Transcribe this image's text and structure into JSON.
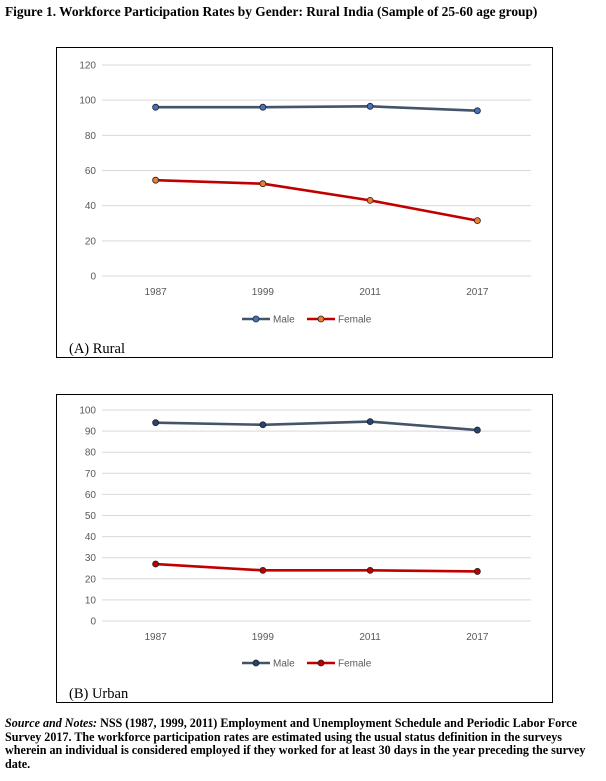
{
  "figure_title": "Figure 1. Workforce Participation Rates by Gender: Rural India (Sample of 25-60 age group)",
  "notes": {
    "lead": "Source and Notes:",
    "text": " NSS (1987, 1999, 2011) Employment and Unemployment Schedule and Periodic Labor Force Survey 2017. The workforce participation rates are estimated using the usual status definition in the surveys wherein an individual is considered employed if they worked for at least 30 days in the year preceding the survey date."
  },
  "chart_data": [
    {
      "type": "line",
      "panel_label": "(A) Rural",
      "categories": [
        "1987",
        "1999",
        "2011",
        "2017"
      ],
      "ylim": [
        0,
        120
      ],
      "yticks": [
        0,
        20,
        40,
        60,
        80,
        100,
        120
      ],
      "grid": true,
      "legend": "bottom",
      "series": [
        {
          "name": "Male",
          "values": [
            96,
            96,
            96.5,
            94
          ],
          "color": "#44546a",
          "marker": "#4472c4"
        },
        {
          "name": "Female",
          "values": [
            54.5,
            52.5,
            43,
            31.5
          ],
          "color": "#c00000",
          "marker": "#ed7d31"
        }
      ]
    },
    {
      "type": "line",
      "panel_label": "(B) Urban",
      "categories": [
        "1987",
        "1999",
        "2011",
        "2017"
      ],
      "ylim": [
        0,
        100
      ],
      "yticks": [
        0,
        10,
        20,
        30,
        40,
        50,
        60,
        70,
        80,
        90,
        100
      ],
      "grid": true,
      "legend": "bottom",
      "series": [
        {
          "name": "Male",
          "values": [
            94,
            93,
            94.5,
            90.5
          ],
          "color": "#44546a",
          "marker": "#264478"
        },
        {
          "name": "Female",
          "values": [
            27,
            24,
            24,
            23.5
          ],
          "color": "#c00000",
          "marker": "#c00000"
        }
      ]
    }
  ]
}
